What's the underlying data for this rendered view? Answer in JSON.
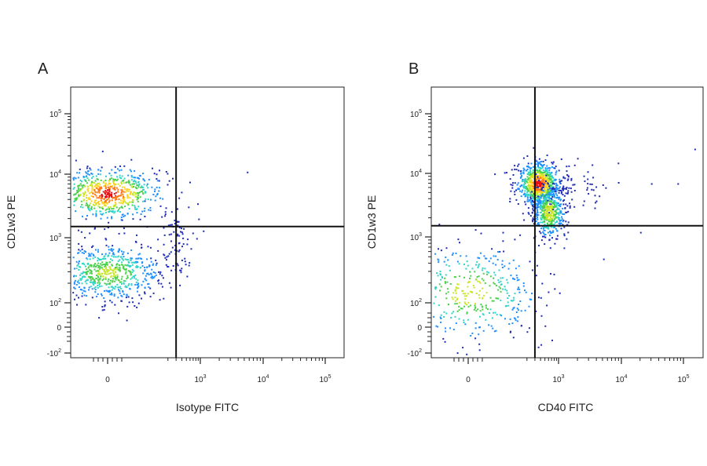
{
  "figure": {
    "panels": [
      {
        "id": "A",
        "label": "A"
      },
      {
        "id": "B",
        "label": "B"
      }
    ]
  },
  "chart_data": [
    {
      "type": "scatter",
      "panel": "A",
      "title": "",
      "xlabel": "Isotype FITC",
      "ylabel": "CD1w3 PE",
      "x_scale": "biexponential",
      "y_scale": "biexponential",
      "x_ticks": [
        {
          "base": "0",
          "exp": ""
        },
        {
          "base": "10",
          "exp": "3"
        },
        {
          "base": "10",
          "exp": "4"
        },
        {
          "base": "10",
          "exp": "5"
        }
      ],
      "y_ticks": [
        {
          "base": "10",
          "exp": "5"
        },
        {
          "base": "10",
          "exp": "4"
        },
        {
          "base": "10",
          "exp": "3"
        },
        {
          "base": "10",
          "exp": "2"
        },
        {
          "base": "0",
          "exp": ""
        },
        {
          "base": "-10",
          "exp": "2"
        }
      ],
      "quadrant_gate": {
        "x": 300,
        "y": 1500
      },
      "colormap": [
        "#1f2bb4",
        "#1e90ff",
        "#30d5c8",
        "#4ad14a",
        "#c8e62a",
        "#ffd21e",
        "#ff7a14",
        "#e81010"
      ],
      "populations": [
        {
          "name": "",
          "x_center": 0,
          "y_center": 5000,
          "x_spread": 60,
          "y_spread": 3000,
          "count": 700,
          "peak_density": 1.0
        },
        {
          "name": "",
          "x_center": 0,
          "y_center": 300,
          "x_spread": 60,
          "y_spread": 200,
          "count": 700,
          "peak_density": 0.55
        },
        {
          "name": "",
          "x_center": 300,
          "y_center": 800,
          "x_spread": 150,
          "y_spread": 600,
          "count": 70,
          "peak_density": 0.05
        }
      ],
      "outliers": [
        {
          "x": 5500,
          "y": 11000
        },
        {
          "x": 1100,
          "y": 1300
        },
        {
          "x": 900,
          "y": 2000
        }
      ]
    },
    {
      "type": "scatter",
      "panel": "B",
      "title": "",
      "xlabel": "CD40 FITC",
      "ylabel": "CD1w3 PE",
      "x_scale": "biexponential",
      "y_scale": "biexponential",
      "x_ticks": [
        {
          "base": "0",
          "exp": ""
        },
        {
          "base": "10",
          "exp": "3"
        },
        {
          "base": "10",
          "exp": "4"
        },
        {
          "base": "10",
          "exp": "5"
        }
      ],
      "y_ticks": [
        {
          "base": "10",
          "exp": "5"
        },
        {
          "base": "10",
          "exp": "4"
        },
        {
          "base": "10",
          "exp": "3"
        },
        {
          "base": "10",
          "exp": "2"
        },
        {
          "base": "0",
          "exp": ""
        },
        {
          "base": "-10",
          "exp": "2"
        }
      ],
      "quadrant_gate": {
        "x": 300,
        "y": 1500
      },
      "colormap": [
        "#1f2bb4",
        "#1e90ff",
        "#30d5c8",
        "#4ad14a",
        "#c8e62a",
        "#ffd21e",
        "#ff7a14",
        "#e81010"
      ],
      "populations": [
        {
          "name": "",
          "x_center": 350,
          "y_center": 7000,
          "x_spread": 250,
          "y_spread": 3500,
          "count": 800,
          "peak_density": 1.0
        },
        {
          "name": "",
          "x_center": 600,
          "y_center": 2500,
          "x_spread": 300,
          "y_spread": 1500,
          "count": 500,
          "peak_density": 0.65
        },
        {
          "name": "",
          "x_center": 0,
          "y_center": 150,
          "x_spread": 80,
          "y_spread": 200,
          "count": 450,
          "peak_density": 0.6
        },
        {
          "name": "",
          "x_center": 2000,
          "y_center": 6500,
          "x_spread": 2000,
          "y_spread": 3000,
          "count": 60,
          "peak_density": 0.05
        }
      ],
      "outliers": [
        {
          "x": 80000,
          "y": 7000
        },
        {
          "x": 20000,
          "y": 1200
        },
        {
          "x": 150000,
          "y": 26000
        },
        {
          "x": 30000,
          "y": 7000
        }
      ]
    }
  ]
}
